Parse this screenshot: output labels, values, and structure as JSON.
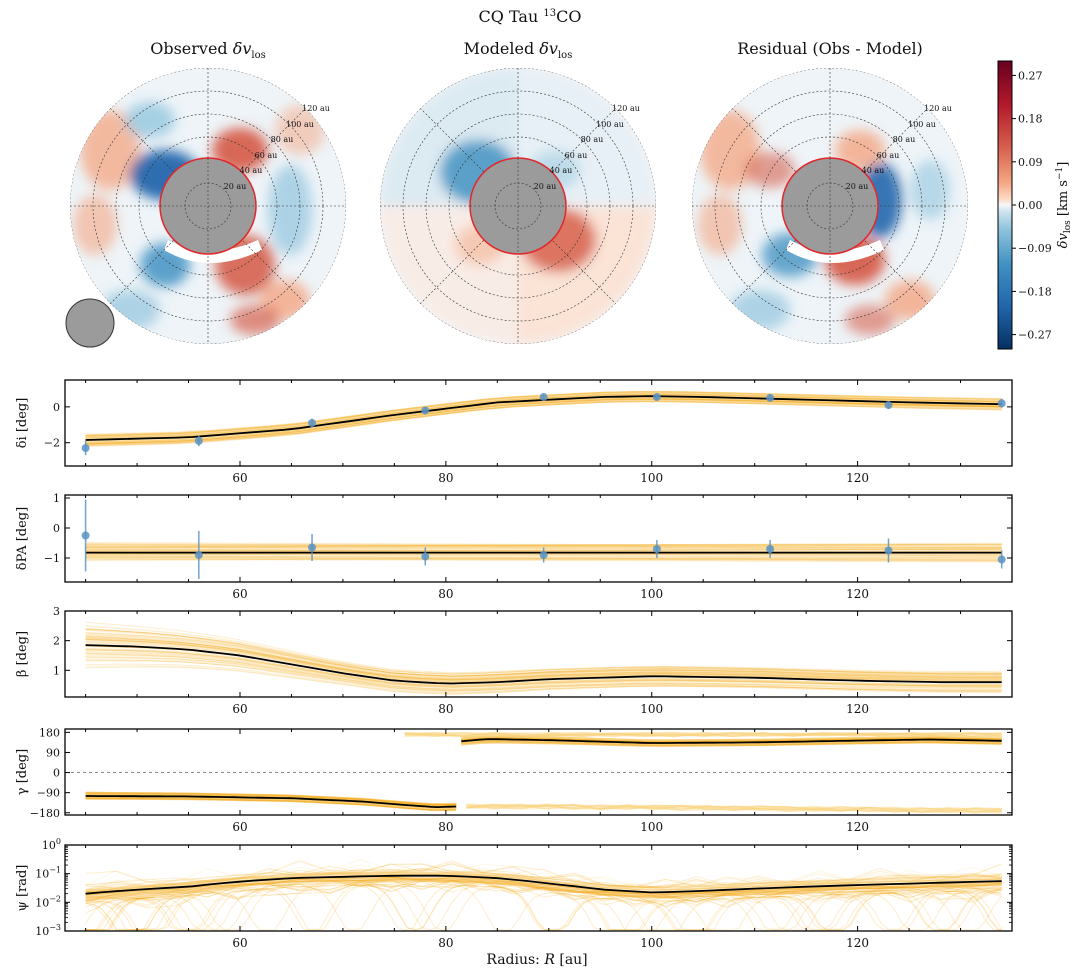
{
  "figure": {
    "title": "CQ Tau ",
    "title_sup": "13",
    "title_tail": "CO"
  },
  "colors": {
    "band": "#f5a300",
    "band_light": "#fbd27a",
    "point": "#5b93c4",
    "line": "#000000",
    "red_dark": "#67001f",
    "red": "#d6604d",
    "red_light": "#fddbc7",
    "blue_dark": "#053061",
    "blue": "#4393c3",
    "blue_light": "#d1e5f0",
    "gray_disk": "#9b9b9b",
    "ring_red": "#e0282c"
  },
  "maps": {
    "panels": [
      {
        "title": "Observed ",
        "sym": "δv",
        "sub": "los",
        "tail": ""
      },
      {
        "title": "Modeled ",
        "sym": "δv",
        "sub": "los",
        "tail": ""
      },
      {
        "title": "Residual (Obs - Model)",
        "sym": "",
        "sub": "",
        "tail": ""
      }
    ],
    "ring_labels": [
      "20 au",
      "40 au",
      "60 au",
      "80 au",
      "100 au",
      "120 au"
    ],
    "ring_labels_modeled": [
      "20 au",
      "40 au",
      "60 au",
      "80 au",
      "100 au",
      "120 au"
    ],
    "ring_labels_residual": [
      "20 au",
      "40 au",
      "60 au",
      "80 au",
      "100 au",
      "120 au"
    ]
  },
  "colorbar": {
    "label": "δv",
    "label_sub": "los",
    "label_units": " [km s",
    "label_exp": "−1",
    "label_close": "]",
    "ticks": [
      "0.27",
      "0.18",
      "0.09",
      "0.00",
      "−0.09",
      "−0.18",
      "−0.27"
    ],
    "range": [
      -0.3,
      0.3
    ]
  },
  "chart_data": [
    {
      "type": "line",
      "ylabel": "δi [deg]",
      "xlim": [
        43,
        135
      ],
      "ylim": [
        -3.3,
        1.5
      ],
      "yticks": [
        "0",
        "−2"
      ],
      "ytick_values": [
        0,
        -2
      ],
      "xticks": [
        "60",
        "80",
        "100",
        "120"
      ],
      "xtick_values": [
        60,
        80,
        100,
        120
      ],
      "points": {
        "x": [
          45,
          56,
          67,
          78,
          89.5,
          100.5,
          111.5,
          123,
          134
        ],
        "y": [
          -2.3,
          -1.9,
          -0.9,
          -0.2,
          0.55,
          0.55,
          0.5,
          0.1,
          0.2
        ],
        "err": [
          0.4,
          0.3,
          0.25,
          0.2,
          0.15,
          0.15,
          0.2,
          0.2,
          0.25
        ]
      },
      "model": {
        "x": [
          45,
          55,
          65,
          75,
          85,
          95,
          100,
          105,
          115,
          125,
          134
        ],
        "y": [
          -1.85,
          -1.7,
          -1.25,
          -0.45,
          0.25,
          0.55,
          0.6,
          0.55,
          0.4,
          0.25,
          0.15
        ]
      },
      "band_halfwidth": 0.3
    },
    {
      "type": "line",
      "ylabel": "δPA [deg]",
      "xlim": [
        43,
        135
      ],
      "ylim": [
        -1.8,
        1.1
      ],
      "yticks": [
        "1",
        "0",
        "−1"
      ],
      "ytick_values": [
        1,
        0,
        -1
      ],
      "xticks": [
        "60",
        "80",
        "100",
        "120"
      ],
      "xtick_values": [
        60,
        80,
        100,
        120
      ],
      "points": {
        "x": [
          45,
          56,
          67,
          78,
          89.5,
          100.5,
          111.5,
          123,
          134
        ],
        "y": [
          -0.25,
          -0.9,
          -0.65,
          -0.95,
          -0.9,
          -0.7,
          -0.7,
          -0.75,
          -1.05
        ],
        "err": [
          1.2,
          0.8,
          0.45,
          0.3,
          0.25,
          0.3,
          0.3,
          0.4,
          0.3
        ]
      },
      "model": {
        "x": [
          45,
          134
        ],
        "y": [
          -0.82,
          -0.82
        ]
      },
      "band_halfwidth": 0.28
    },
    {
      "type": "line",
      "ylabel": "β [deg]",
      "xlim": [
        43,
        135
      ],
      "ylim": [
        0.1,
        3.0
      ],
      "yticks": [
        "3",
        "2",
        "1"
      ],
      "ytick_values": [
        3,
        2,
        1
      ],
      "xticks": [
        "60",
        "80",
        "100",
        "120"
      ],
      "xtick_values": [
        60,
        80,
        100,
        120
      ],
      "model": {
        "x": [
          45,
          50,
          55,
          60,
          65,
          70,
          75,
          80,
          85,
          90,
          100,
          110,
          120,
          128,
          134
        ],
        "y": [
          1.85,
          1.8,
          1.7,
          1.5,
          1.2,
          0.9,
          0.65,
          0.55,
          0.6,
          0.7,
          0.8,
          0.75,
          0.65,
          0.6,
          0.6
        ]
      },
      "band_halfwidth": 0.35
    },
    {
      "type": "line",
      "ylabel": "γ [deg]",
      "xlim": [
        43,
        135
      ],
      "ylim": [
        -190,
        195
      ],
      "yticks": [
        "180",
        "90",
        "0",
        "−90",
        "−180"
      ],
      "ytick_values": [
        180,
        90,
        0,
        -90,
        -180
      ],
      "xticks": [
        "60",
        "80",
        "100",
        "120"
      ],
      "xtick_values": [
        60,
        80,
        100,
        120
      ],
      "zero_line": 0,
      "model_segments": [
        {
          "x": [
            45,
            55,
            65,
            72,
            76,
            79,
            81
          ],
          "y": [
            -105,
            -107,
            -115,
            -130,
            -145,
            -155,
            -152
          ]
        },
        {
          "x": [
            81.5,
            84,
            90,
            100,
            110,
            120,
            127,
            134
          ],
          "y": [
            140,
            150,
            145,
            132,
            135,
            143,
            148,
            142
          ]
        }
      ],
      "band_halfwidth": 15
    },
    {
      "type": "line",
      "ylabel": "ψ [rad]",
      "yscale": "log",
      "xlim": [
        43,
        135
      ],
      "ylim": [
        0.001,
        1
      ],
      "ytick_labels": [
        {
          "base": "10",
          "exp": "0",
          "value": 1
        },
        {
          "base": "10",
          "exp": "−1",
          "value": 0.1
        },
        {
          "base": "10",
          "exp": "−2",
          "value": 0.01
        },
        {
          "base": "10",
          "exp": "−3",
          "value": 0.001
        }
      ],
      "xticks": [
        "60",
        "80",
        "100",
        "120"
      ],
      "xtick_values": [
        60,
        80,
        100,
        120
      ],
      "model": {
        "x": [
          45,
          55,
          65,
          75,
          80,
          85,
          90,
          95,
          100,
          105,
          115,
          125,
          134
        ],
        "y": [
          0.02,
          0.035,
          0.07,
          0.085,
          0.085,
          0.07,
          0.045,
          0.028,
          0.022,
          0.025,
          0.035,
          0.045,
          0.055
        ]
      },
      "xlabel": "Radius: ",
      "xlabel_sym": "R",
      "xlabel_units": " [au]"
    }
  ]
}
